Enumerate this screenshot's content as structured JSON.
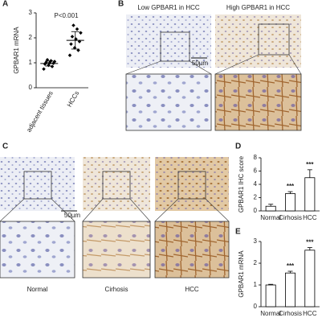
{
  "chart_data": [
    {
      "panel": "A",
      "type": "scatter",
      "ylabel": "GPBAR1 mRNA",
      "annotation": "P<0.001",
      "categories": [
        "adjacent tissues",
        "HCCs"
      ],
      "values": [
        [
          0.75,
          0.85,
          0.9,
          0.95,
          0.98,
          1.0,
          1.02,
          1.05,
          1.08,
          1.12
        ],
        [
          1.3,
          1.5,
          1.6,
          1.75,
          1.85,
          1.95,
          2.05,
          2.2,
          2.35,
          2.5
        ]
      ],
      "means": [
        0.97,
        1.9
      ],
      "sd": [
        0.1,
        0.35
      ],
      "color": "#000000",
      "ylim": [
        0,
        3
      ],
      "yticks": [
        0,
        1,
        2,
        3
      ]
    },
    {
      "panel": "D",
      "type": "bar",
      "ylabel": "GPBAR1 IHC score",
      "categories": [
        "Normal",
        "Cirhosis",
        "HCC"
      ],
      "values": [
        0.7,
        2.6,
        5.0
      ],
      "errors": [
        0.3,
        0.3,
        1.2
      ],
      "significance": [
        null,
        "***",
        "***"
      ],
      "color": "#ffffff",
      "ylim": [
        0,
        8
      ],
      "yticks": [
        0,
        2,
        4,
        6,
        8
      ]
    },
    {
      "panel": "E",
      "type": "bar",
      "ylabel": "GPBAR1 mRNA",
      "categories": [
        "Normal",
        "Cirhosis",
        "HCC"
      ],
      "values": [
        1.0,
        1.55,
        2.6
      ],
      "errors": [
        0.03,
        0.08,
        0.12
      ],
      "significance": [
        null,
        "***",
        "***"
      ],
      "color": "#ffffff",
      "ylim": [
        0,
        3
      ],
      "yticks": [
        0,
        1,
        2,
        3
      ]
    }
  ],
  "micrographs": [
    {
      "panel": "B",
      "columns": [
        "Low GPBAR1 in HCC",
        "High GPBAR1 in HCC"
      ],
      "scale_bar": "50µm"
    },
    {
      "panel": "C",
      "columns": [
        "Normal",
        "Cirhosis",
        "HCC"
      ],
      "scale_bar": "50µm"
    }
  ]
}
